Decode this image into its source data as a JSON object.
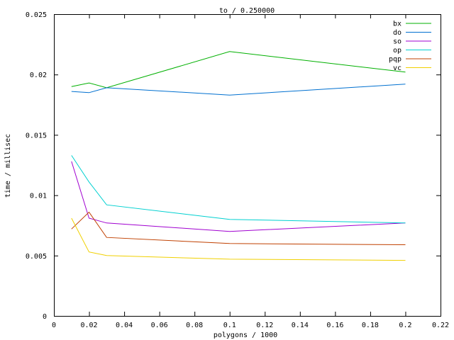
{
  "chart_data": {
    "type": "line",
    "title": "to / 0.250000",
    "xlabel": "polygons / 1000",
    "ylabel": "time / millisec",
    "xlim": [
      0,
      0.22
    ],
    "ylim": [
      0,
      0.025
    ],
    "xticks": [
      0,
      0.02,
      0.04,
      0.06,
      0.08,
      0.1,
      0.12,
      0.14,
      0.16,
      0.18,
      0.2,
      0.22
    ],
    "xtick_labels": [
      "0",
      "0.02",
      "0.04",
      "0.06",
      "0.08",
      "0.1",
      "0.12",
      "0.14",
      "0.16",
      "0.18",
      "0.2",
      "0.22"
    ],
    "yticks": [
      0,
      0.005,
      0.01,
      0.015,
      0.02,
      0.025
    ],
    "ytick_labels": [
      "0",
      "0.005",
      "0.01",
      "0.015",
      "0.02",
      "0.025"
    ],
    "grid": false,
    "legend_position": "top-right",
    "x": [
      0.01,
      0.02,
      0.03,
      0.1,
      0.2
    ],
    "series": [
      {
        "name": "bx",
        "color": "#00b000",
        "values": [
          0.019,
          0.0193,
          0.0189,
          0.0219,
          0.0202
        ]
      },
      {
        "name": "do",
        "color": "#0070d0",
        "values": [
          0.0186,
          0.0185,
          0.0189,
          0.0183,
          0.0192
        ]
      },
      {
        "name": "so",
        "color": "#a000d0",
        "values": [
          0.0128,
          0.0081,
          0.0077,
          0.007,
          0.0077
        ]
      },
      {
        "name": "op",
        "color": "#00d0d0",
        "values": [
          0.0133,
          0.0111,
          0.0092,
          0.008,
          0.0077
        ]
      },
      {
        "name": "pqp",
        "color": "#c04000",
        "values": [
          0.0072,
          0.0086,
          0.0065,
          0.006,
          0.0059
        ]
      },
      {
        "name": "vc",
        "color": "#f0d000",
        "values": [
          0.0081,
          0.0053,
          0.005,
          0.0047,
          0.0046
        ]
      }
    ]
  }
}
